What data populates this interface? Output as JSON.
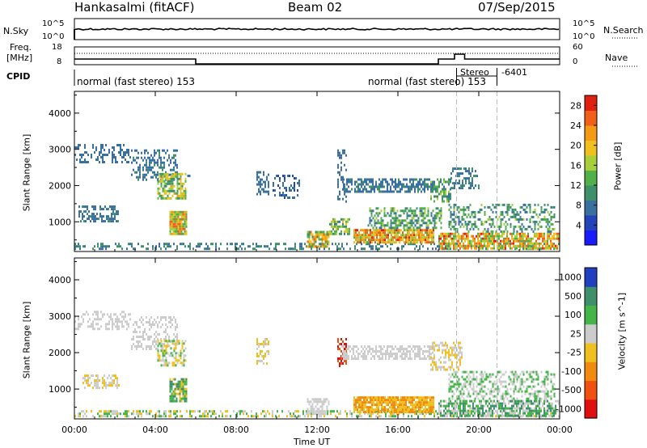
{
  "header": {
    "station": "Hankasalmi (fitACF)",
    "beam": "Beam 02",
    "date": "07/Sep/2015"
  },
  "top_panels": {
    "nsky_label": "N.Sky",
    "nsearch_label": "N.Search",
    "noise_ticks_left": [
      "10^5",
      "10^0"
    ],
    "noise_ticks_right": [
      "10^5",
      "10^0"
    ],
    "freq_label": "Freq.",
    "freq_unit": "[MHz]",
    "freq_ticks": [
      "18",
      "8"
    ],
    "nave_ticks": [
      "60",
      "0"
    ],
    "nave_label": "Nave",
    "cpid_label": "CPID",
    "cpid_segments": [
      {
        "text": "normal (fast stereo) 153",
        "t": 0.0
      },
      {
        "text": "normal (fast stereo) 153",
        "t": 13.3
      },
      {
        "text": "Stereo",
        "t": 18.1
      },
      {
        "text": "-6401",
        "t": 19.8
      }
    ]
  },
  "time_axis": {
    "label": "Time UT",
    "ticks": [
      "00:00",
      "04:00",
      "08:00",
      "12:00",
      "16:00",
      "20:00",
      "00:00"
    ],
    "tick_hours": [
      0,
      4,
      8,
      12,
      16,
      20,
      24
    ],
    "range": [
      0,
      24
    ],
    "dashed_markers": [
      18.9,
      20.9
    ]
  },
  "chart_data": [
    {
      "type": "heatmap",
      "ylabel": "Slant Range [km]",
      "yticks": [
        "1000",
        "2000",
        "3000",
        "4000"
      ],
      "ytick_values": [
        1000,
        2000,
        3000,
        4000
      ],
      "ylim": [
        180,
        4600
      ],
      "colorbar": {
        "label": "Power [dB]",
        "ticks": [
          "4",
          "8",
          "12",
          "16",
          "20",
          "24",
          "28"
        ],
        "tick_values": [
          4,
          8,
          12,
          16,
          20,
          24,
          28
        ],
        "range": [
          0,
          30
        ],
        "colors": [
          "#1a1aff",
          "#2344b8",
          "#3a70a0",
          "#3f8f6a",
          "#52b04a",
          "#a8cf3a",
          "#f0c020",
          "#f59a14",
          "#f06018",
          "#e02010"
        ]
      },
      "clusters": [
        {
          "t0": 0.0,
          "t1": 2.8,
          "r0": 2600,
          "r1": 3150,
          "v0": 7,
          "v1": 9,
          "d": 0.35
        },
        {
          "t0": 2.8,
          "t1": 5.1,
          "r0": 2100,
          "r1": 3000,
          "v0": 6,
          "v1": 10,
          "d": 0.4
        },
        {
          "t0": 4.1,
          "t1": 5.5,
          "r0": 1600,
          "r1": 2350,
          "v0": 9,
          "v1": 22,
          "d": 0.7
        },
        {
          "t0": 5.5,
          "t1": 5.9,
          "r0": 2000,
          "r1": 2300,
          "v0": 6,
          "v1": 9,
          "d": 0.3
        },
        {
          "t0": 4.7,
          "t1": 5.6,
          "r0": 650,
          "r1": 1300,
          "v0": 12,
          "v1": 26,
          "d": 0.9
        },
        {
          "t0": 0.2,
          "t1": 2.2,
          "r0": 1000,
          "r1": 1450,
          "v0": 6,
          "v1": 10,
          "d": 0.55
        },
        {
          "t0": 0.0,
          "t1": 24.0,
          "r0": 200,
          "r1": 420,
          "v0": 6,
          "v1": 12,
          "d": 0.35
        },
        {
          "t0": 9.0,
          "t1": 9.6,
          "r0": 1700,
          "r1": 2400,
          "v0": 6,
          "v1": 9,
          "d": 0.45
        },
        {
          "t0": 9.8,
          "t1": 11.2,
          "r0": 1600,
          "r1": 2300,
          "v0": 5,
          "v1": 8,
          "d": 0.3
        },
        {
          "t0": 11.5,
          "t1": 12.6,
          "r0": 300,
          "r1": 750,
          "v0": 10,
          "v1": 26,
          "d": 0.8
        },
        {
          "t0": 12.6,
          "t1": 13.6,
          "r0": 600,
          "r1": 1100,
          "v0": 8,
          "v1": 20,
          "d": 0.6
        },
        {
          "t0": 13.0,
          "t1": 13.5,
          "r0": 1500,
          "r1": 3000,
          "v0": 6,
          "v1": 9,
          "d": 0.25
        },
        {
          "t0": 13.2,
          "t1": 17.8,
          "r0": 1800,
          "r1": 2200,
          "v0": 6,
          "v1": 10,
          "d": 0.6
        },
        {
          "t0": 13.8,
          "t1": 17.8,
          "r0": 400,
          "r1": 800,
          "v0": 14,
          "v1": 28,
          "d": 0.9
        },
        {
          "t0": 14.5,
          "t1": 18.2,
          "r0": 800,
          "r1": 1400,
          "v0": 7,
          "v1": 16,
          "d": 0.5
        },
        {
          "t0": 17.6,
          "t1": 18.6,
          "r0": 1500,
          "r1": 2200,
          "v0": 8,
          "v1": 16,
          "d": 0.6
        },
        {
          "t0": 18.6,
          "t1": 20.0,
          "r0": 1900,
          "r1": 2500,
          "v0": 6,
          "v1": 10,
          "d": 0.35
        },
        {
          "t0": 18.0,
          "t1": 24.0,
          "r0": 250,
          "r1": 700,
          "v0": 12,
          "v1": 28,
          "d": 0.7
        },
        {
          "t0": 18.5,
          "t1": 23.8,
          "r0": 700,
          "r1": 1500,
          "v0": 6,
          "v1": 16,
          "d": 0.4
        }
      ]
    },
    {
      "type": "heatmap",
      "ylabel": "Slant Range [km]",
      "yticks": [
        "1000",
        "2000",
        "3000",
        "4000"
      ],
      "ytick_values": [
        1000,
        2000,
        3000,
        4000
      ],
      "ylim": [
        180,
        4600
      ],
      "colorbar": {
        "label": "Velocity [m s^-1]",
        "ticks": [
          "1000",
          "500",
          "100",
          "25",
          "-25",
          "-100",
          "-500",
          "-1000"
        ],
        "colors": [
          "#2040c0",
          "#3f8f6a",
          "#45b54a",
          "#cccccc",
          "#f0c020",
          "#f08a10",
          "#f05010",
          "#e01010"
        ],
        "category_labels": [
          "1000",
          "500",
          "100",
          "25",
          "-25",
          "-100",
          "-500",
          "-1000"
        ]
      },
      "clusters": [
        {
          "t0": 0.0,
          "t1": 2.8,
          "r0": 2600,
          "r1": 3150,
          "c": [
            3
          ],
          "d": 0.35
        },
        {
          "t0": 2.8,
          "t1": 5.1,
          "r0": 2100,
          "r1": 3000,
          "c": [
            3
          ],
          "d": 0.35
        },
        {
          "t0": 4.1,
          "t1": 5.5,
          "r0": 1600,
          "r1": 2350,
          "c": [
            3,
            4,
            2
          ],
          "d": 0.6
        },
        {
          "t0": 4.7,
          "t1": 5.6,
          "r0": 650,
          "r1": 1300,
          "c": [
            2,
            1,
            4
          ],
          "d": 0.8
        },
        {
          "t0": 0.4,
          "t1": 2.2,
          "r0": 1000,
          "r1": 1400,
          "c": [
            4,
            3
          ],
          "d": 0.5
        },
        {
          "t0": 0.0,
          "t1": 24.0,
          "r0": 200,
          "r1": 420,
          "c": [
            4,
            2,
            3
          ],
          "d": 0.4
        },
        {
          "t0": 9.0,
          "t1": 9.6,
          "r0": 1700,
          "r1": 2400,
          "c": [
            4,
            3
          ],
          "d": 0.4
        },
        {
          "t0": 11.5,
          "t1": 12.6,
          "r0": 300,
          "r1": 750,
          "c": [
            3
          ],
          "d": 0.7
        },
        {
          "t0": 13.0,
          "t1": 13.5,
          "r0": 1600,
          "r1": 2400,
          "c": [
            6,
            7
          ],
          "d": 0.5
        },
        {
          "t0": 13.2,
          "t1": 17.8,
          "r0": 1800,
          "r1": 2200,
          "c": [
            3
          ],
          "d": 0.6
        },
        {
          "t0": 13.8,
          "t1": 17.8,
          "r0": 350,
          "r1": 800,
          "c": [
            5,
            4
          ],
          "d": 0.9
        },
        {
          "t0": 17.6,
          "t1": 19.2,
          "r0": 1500,
          "r1": 2300,
          "c": [
            3,
            4
          ],
          "d": 0.5
        },
        {
          "t0": 18.0,
          "t1": 24.0,
          "r0": 250,
          "r1": 700,
          "c": [
            1,
            2,
            3
          ],
          "d": 0.7
        },
        {
          "t0": 18.5,
          "t1": 23.8,
          "r0": 700,
          "r1": 1500,
          "c": [
            3,
            2
          ],
          "d": 0.45
        }
      ]
    }
  ]
}
